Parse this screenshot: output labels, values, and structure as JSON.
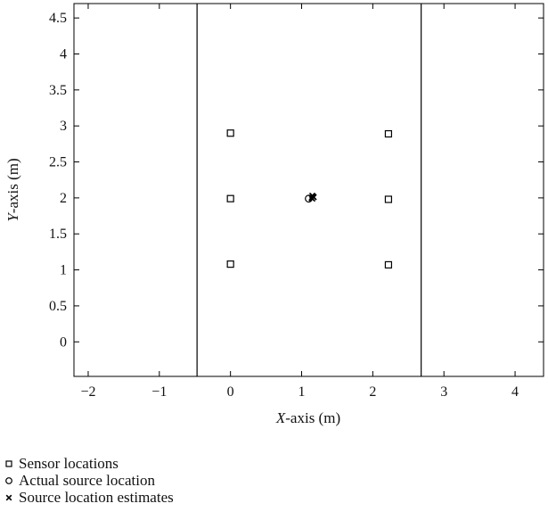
{
  "chart_data": {
    "type": "scatter",
    "xlim": [
      -2.2,
      4.4
    ],
    "ylim": [
      -0.48,
      4.7
    ],
    "xticks": [
      -2,
      -1,
      0,
      1,
      2,
      3,
      4
    ],
    "yticks": [
      0,
      0.5,
      1,
      1.5,
      2,
      2.5,
      3,
      3.5,
      4,
      4.5
    ],
    "xtick_labels": [
      "−2",
      "−1",
      "0",
      "1",
      "2",
      "3",
      "4"
    ],
    "ytick_labels": [
      "0",
      "0.5",
      "1",
      "1.5",
      "2",
      "2.5",
      "3",
      "3.5",
      "4",
      "4.5"
    ],
    "xlabel_var": "X",
    "xlabel_rest": "-axis (m)",
    "ylabel_var": "Y",
    "ylabel_rest": "-axis (m)",
    "vertical_lines_x": [
      -0.47,
      2.68
    ],
    "grid": false,
    "legend_position": "below",
    "series": [
      {
        "name": "Sensor locations",
        "marker": "square",
        "points": [
          [
            0,
            2.9
          ],
          [
            0,
            1.99
          ],
          [
            0,
            1.08
          ],
          [
            2.22,
            2.89
          ],
          [
            2.22,
            1.98
          ],
          [
            2.22,
            1.07
          ]
        ]
      },
      {
        "name": "Actual source location",
        "marker": "circle",
        "points": [
          [
            1.1,
            1.99
          ]
        ]
      },
      {
        "name": "Source location estimates",
        "marker": "x",
        "points": [
          [
            1.14,
            2.0
          ],
          [
            1.16,
            2.02
          ],
          [
            1.15,
            1.99
          ],
          [
            1.17,
            2.01
          ],
          [
            1.15,
            2.03
          ]
        ]
      }
    ]
  }
}
